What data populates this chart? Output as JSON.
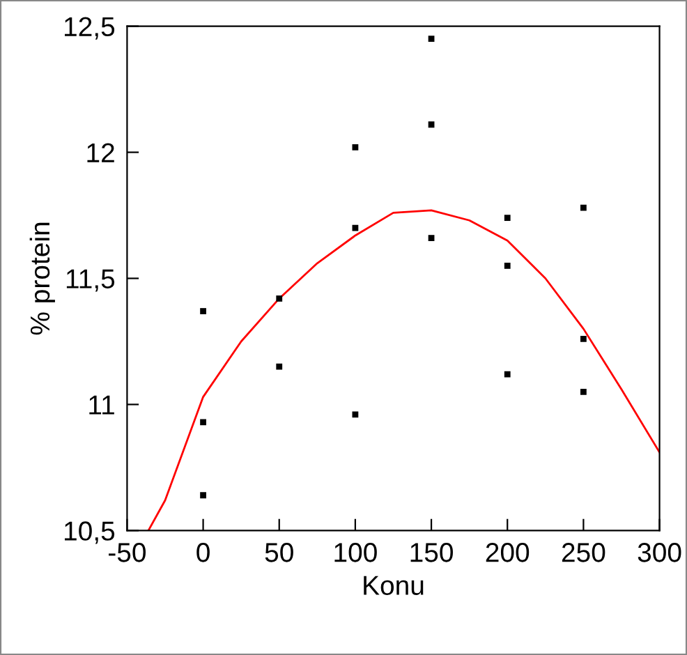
{
  "chart_data": {
    "type": "scatter",
    "xlabel": "Konu",
    "ylabel": "% protein",
    "xlim": [
      -50,
      300
    ],
    "ylim": [
      10.5,
      12.5
    ],
    "xticks": [
      -50,
      0,
      50,
      100,
      150,
      200,
      250,
      300
    ],
    "yticks": [
      {
        "value": 10.5,
        "label": "10,5"
      },
      {
        "value": 11,
        "label": "11"
      },
      {
        "value": 11.5,
        "label": "11,5"
      },
      {
        "value": 12,
        "label": "12"
      },
      {
        "value": 12.5,
        "label": "12,5"
      }
    ],
    "grid": false,
    "series": [
      {
        "marker": "square",
        "color": "#000000",
        "x": [
          0,
          0,
          0,
          50,
          50,
          100,
          100,
          100,
          150,
          150,
          150,
          200,
          200,
          200,
          250,
          250,
          250
        ],
        "values": [
          11.37,
          10.93,
          10.64,
          11.42,
          11.15,
          12.02,
          11.7,
          10.96,
          12.45,
          12.11,
          11.66,
          11.74,
          11.55,
          11.12,
          11.78,
          11.26,
          11.05
        ]
      },
      {
        "type": "line",
        "color": "#ff0000",
        "x": [
          -36,
          -25,
          0,
          25,
          50,
          75,
          100,
          125,
          150,
          175,
          200,
          225,
          250,
          275,
          300
        ],
        "values": [
          10.5,
          10.62,
          11.03,
          11.25,
          11.42,
          11.56,
          11.67,
          11.76,
          11.77,
          11.73,
          11.65,
          11.5,
          11.3,
          11.06,
          10.81
        ]
      }
    ]
  }
}
